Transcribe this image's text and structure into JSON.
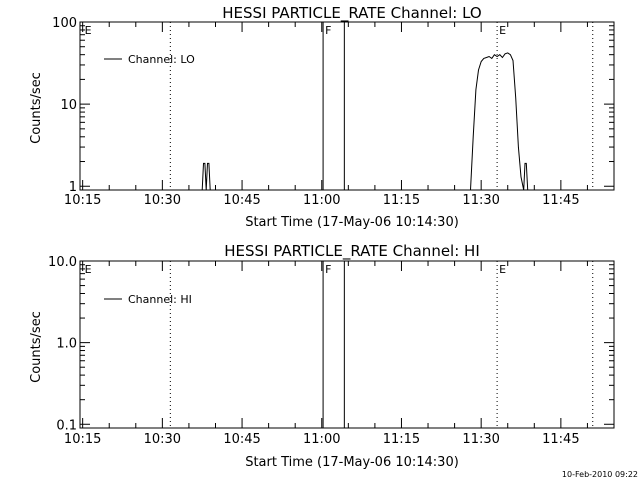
{
  "chart_data": [
    {
      "type": "line",
      "title": "HESSI PARTICLE_RATE Channel: LO",
      "xlabel": "Start Time (17-May-06 10:14:30)",
      "ylabel": "Counts/sec",
      "y_scale": "log",
      "ylim": [
        0.9,
        100
      ],
      "xlim": [
        "10:14:30",
        "11:55:00"
      ],
      "x_tick_labels": [
        "10:15",
        "10:30",
        "10:45",
        "11:00",
        "11:15",
        "11:30",
        "11:45"
      ],
      "y_tick_labels": [
        "1",
        "10",
        "100"
      ],
      "legend": {
        "placement": "top-left",
        "entries": [
          "Channel: LO"
        ]
      },
      "series": [
        {
          "name": "Channel: LO",
          "x": [
            "10:37:30",
            "10:37:45",
            "10:38:00",
            "10:38:15",
            "10:38:30",
            "10:38:45",
            "10:39:00",
            "10:39:15",
            "11:28:00",
            "11:28:30",
            "11:29:00",
            "11:29:30",
            "11:30:00",
            "11:30:30",
            "11:31:00",
            "11:31:30",
            "11:32:00",
            "11:32:30",
            "11:33:00",
            "11:33:30",
            "11:34:00",
            "11:34:30",
            "11:35:00",
            "11:35:30",
            "11:36:00",
            "11:36:30",
            "11:37:00",
            "11:37:30",
            "11:38:00",
            "11:38:15",
            "11:38:30",
            "11:38:45",
            "11:39:00"
          ],
          "y": [
            0.9,
            1.9,
            1.9,
            0.9,
            1.9,
            1.9,
            0.9,
            0.9,
            0.9,
            4,
            15,
            26,
            33,
            36,
            37,
            38,
            36,
            40,
            38,
            40,
            37,
            41,
            42,
            40,
            34,
            12,
            3,
            1.3,
            0.9,
            1.9,
            1.9,
            0.9,
            0.9
          ]
        }
      ],
      "annotations": [
        {
          "label": "E",
          "time": "10:15:00",
          "style": "dotted",
          "draw_line": false
        },
        {
          "label": "",
          "time": "10:31:30",
          "style": "dotted"
        },
        {
          "label": "F",
          "time": "11:00:15",
          "style": "solid"
        },
        {
          "label": "",
          "time": "11:04:15",
          "style": "solid"
        },
        {
          "label": "E",
          "time": "11:33:00",
          "style": "dotted"
        },
        {
          "label": "",
          "time": "11:51:00",
          "style": "dotted"
        }
      ]
    },
    {
      "type": "line",
      "title": "HESSI PARTICLE_RATE Channel: HI",
      "xlabel": "Start Time (17-May-06 10:14:30)",
      "ylabel": "Counts/sec",
      "y_scale": "log",
      "ylim": [
        0.09,
        10
      ],
      "xlim": [
        "10:14:30",
        "11:55:00"
      ],
      "x_tick_labels": [
        "10:15",
        "10:30",
        "10:45",
        "11:00",
        "11:15",
        "11:30",
        "11:45"
      ],
      "y_tick_labels": [
        "0.1",
        "1.0",
        "10.0"
      ],
      "legend": {
        "placement": "top-left",
        "entries": [
          "Channel: HI"
        ]
      },
      "series": [
        {
          "name": "Channel: HI",
          "x": [],
          "y": []
        }
      ],
      "annotations": [
        {
          "label": "E",
          "time": "10:15:00",
          "style": "dotted",
          "draw_line": false
        },
        {
          "label": "",
          "time": "10:31:30",
          "style": "dotted"
        },
        {
          "label": "F",
          "time": "11:00:15",
          "style": "solid"
        },
        {
          "label": "",
          "time": "11:04:15",
          "style": "solid"
        },
        {
          "label": "E",
          "time": "11:33:00",
          "style": "dotted"
        },
        {
          "label": "",
          "time": "11:51:00",
          "style": "dotted"
        }
      ]
    }
  ],
  "footer": {
    "timestamp": "10-Feb-2010 09:22"
  },
  "colors": {
    "background": "#ffffff",
    "foreground": "#000000"
  }
}
